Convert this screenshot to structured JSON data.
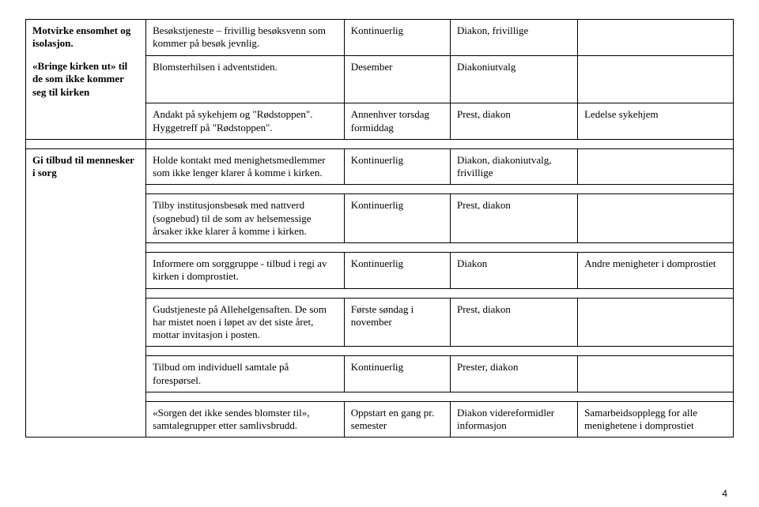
{
  "rows": [
    {
      "leftTop": "Motvirke ensomhet og isolasjon.",
      "leftBold": true,
      "c2": "Besøkstjeneste – frivillig besøksvenn som kommer på besøk jevnlig.",
      "c3": "Kontinuerlig",
      "c4": "Diakon, frivillige",
      "c5": ""
    },
    {
      "leftTop": "«Bringe kirken ut» til de som ikke kommer seg til kirken",
      "leftBold": true,
      "c2": "Blomsterhilsen i adventstiden.",
      "c3": "Desember",
      "c4": "Diakoniutvalg",
      "c5": ""
    },
    {
      "leftTop": "",
      "leftBold": false,
      "c2": "Andakt på sykehjem og \"Rødstoppen\". Hyggetreff på \"Rødstoppen\".",
      "c3": "Annenhver torsdag formiddag",
      "c4": "Prest, diakon",
      "c5": "Ledelse sykehjem"
    },
    {
      "leftTop": "Gi tilbud til mennesker i sorg",
      "leftBold": true,
      "c2": "Holde kontakt med menighetsmedlemmer som ikke lenger klarer å komme i kirken.",
      "c3": "Kontinuerlig",
      "c4": "Diakon, diakoniutvalg, frivillige",
      "c5": ""
    },
    {
      "leftTop": "",
      "leftBold": false,
      "c2": "Tilby institusjonsbesøk med nattverd (sognebud) til de som av helsemessige årsaker ikke klarer å komme i kirken.",
      "c3": "Kontinuerlig",
      "c4": "Prest, diakon",
      "c5": ""
    },
    {
      "leftTop": "",
      "leftBold": false,
      "c2": "Informere om sorggruppe - tilbud i regi av kirken i domprostiet.",
      "c3": "Kontinuerlig",
      "c4": "Diakon",
      "c5": "Andre menigheter i domprostiet"
    },
    {
      "leftTop": "",
      "leftBold": false,
      "c2": "Gudstjeneste på Allehelgensaften. De som har mistet noen i løpet av det siste året, mottar invitasjon i posten.",
      "c3": "Første søndag i november",
      "c4": "Prest, diakon",
      "c5": ""
    },
    {
      "leftTop": "",
      "leftBold": false,
      "c2": "Tilbud om individuell samtale på forespørsel.",
      "c3": "Kontinuerlig",
      "c4": "Prester, diakon",
      "c5": ""
    },
    {
      "leftTop": "",
      "leftBold": false,
      "c2": "«Sorgen det ikke sendes blomster til», samtalegrupper etter samlivsbrudd.",
      "c3": "Oppstart en gang pr. semester",
      "c4": "Diakon videreformidler informasjon",
      "c5": "Samarbeidsopplegg for alle menighetene i domprostiet"
    }
  ],
  "pageNumber": "4"
}
